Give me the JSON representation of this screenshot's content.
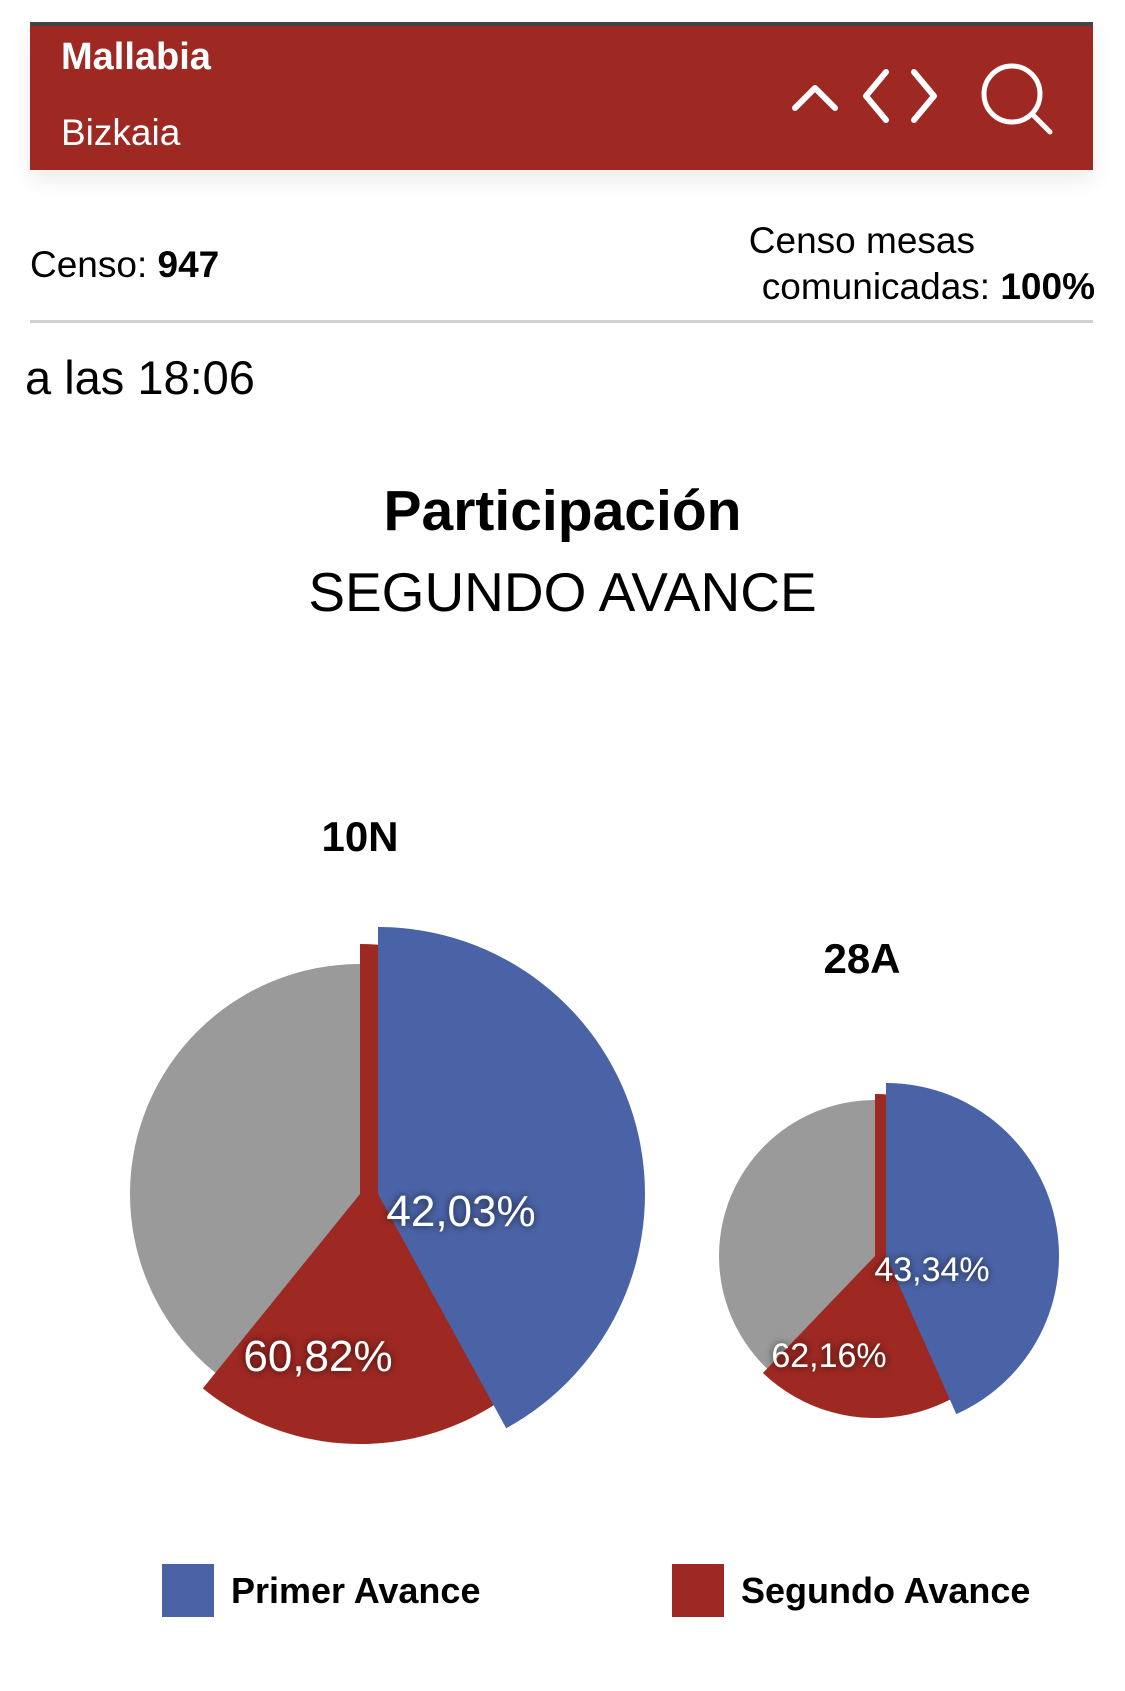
{
  "header": {
    "title": "Mallabia",
    "subtitle": "Bizkaia",
    "icons": [
      "chevron-up-icon",
      "chevron-left-icon",
      "chevron-right-icon",
      "search-icon"
    ]
  },
  "stats": {
    "censo_label": "Censo: ",
    "censo_value": "947",
    "mesas_label_1": "Censo mesas",
    "mesas_label_2": "comunicadas: ",
    "mesas_value": "100%"
  },
  "time": "a las 18:06",
  "colors": {
    "brand": "#9e2822",
    "primer": "#4a63a6",
    "segundo": "#9e2822",
    "total": "#9a9a9a"
  },
  "chart_data": {
    "type": "pie",
    "title": "Participación",
    "subtitle": "SEGUNDO AVANCE",
    "charts": [
      {
        "name": "10N",
        "primer_avance": 42.03,
        "segundo_avance": 60.82,
        "primer_label": "42,03%",
        "segundo_label": "60,82%"
      },
      {
        "name": "28A",
        "primer_avance": 43.34,
        "segundo_avance": 62.16,
        "primer_label": "43,34%",
        "segundo_label": "62,16%"
      }
    ],
    "legend": [
      {
        "name": "Primer Avance",
        "color": "#4a63a6"
      },
      {
        "name": "Segundo Avance",
        "color": "#9e2822"
      }
    ],
    "legend_position": "bottom"
  }
}
